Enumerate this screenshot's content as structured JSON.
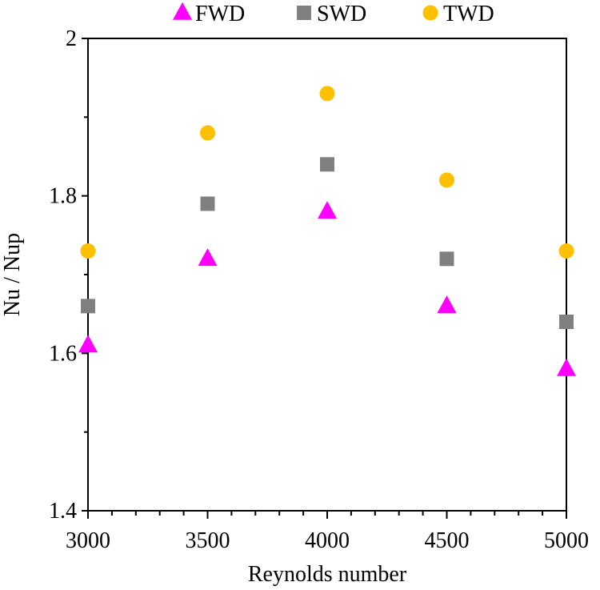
{
  "chart_data": {
    "type": "scatter",
    "title": "",
    "xlabel": "Reynolds number",
    "ylabel": "Nu / Nup",
    "xlim": [
      3000,
      5000
    ],
    "ylim": [
      1.4,
      2.0
    ],
    "x_ticks": [
      3000,
      3500,
      4000,
      4500,
      5000
    ],
    "x_tick_labels": [
      "3000",
      "3500",
      "4000",
      "4500",
      "5000"
    ],
    "y_ticks": [
      1.4,
      1.6,
      1.8,
      2.0
    ],
    "y_tick_labels": [
      "1.4",
      "1.6",
      "1.8",
      "2"
    ],
    "grid": false,
    "legend_position": "top",
    "x": [
      3000,
      3500,
      4000,
      4500,
      5000
    ],
    "series": [
      {
        "name": "FWD",
        "marker": "triangle",
        "color": "#ff00ff",
        "values": [
          1.61,
          1.72,
          1.78,
          1.66,
          1.58
        ]
      },
      {
        "name": "SWD",
        "marker": "square",
        "color": "#808080",
        "values": [
          1.66,
          1.79,
          1.84,
          1.72,
          1.64
        ]
      },
      {
        "name": "TWD",
        "marker": "circle",
        "color": "#ffc000",
        "values": [
          1.73,
          1.88,
          1.93,
          1.82,
          1.73
        ]
      }
    ]
  }
}
